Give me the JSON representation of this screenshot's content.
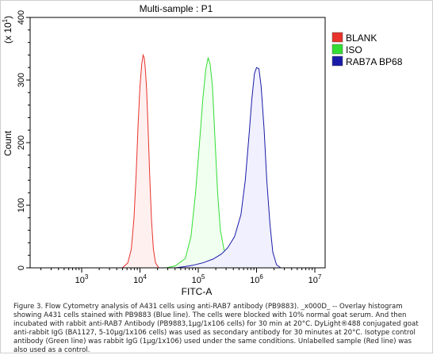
{
  "chart_data": {
    "type": "area",
    "title": "Multi-sample : P1",
    "xlabel": "FITC-A",
    "ylabel": "Count",
    "y_multiplier_label": "(x 10",
    "y_multiplier_exp": "1",
    "y_multiplier_close": ")",
    "x_scale": "log",
    "x_ticks": [
      {
        "base": "10",
        "exp": "3",
        "value": 1000
      },
      {
        "base": "10",
        "exp": "4",
        "value": 10000
      },
      {
        "base": "10",
        "exp": "5",
        "value": 100000
      },
      {
        "base": "10",
        "exp": "6",
        "value": 1000000
      },
      {
        "base": "10",
        "exp": "7",
        "value": 10000000
      }
    ],
    "xlim": [
      200,
      10000000
    ],
    "y_ticks": [
      "0",
      "100",
      "200",
      "300",
      "400"
    ],
    "ylim": [
      0,
      400
    ],
    "grid": false,
    "legend_position": "top-right",
    "series": [
      {
        "name": "BLANK",
        "color": "#e8322a",
        "fill": "#fff0f0",
        "points": [
          [
            5000,
            0
          ],
          [
            6200,
            8
          ],
          [
            7100,
            30
          ],
          [
            7900,
            80
          ],
          [
            8600,
            150
          ],
          [
            9300,
            230
          ],
          [
            10000,
            290
          ],
          [
            10700,
            325
          ],
          [
            11300,
            340
          ],
          [
            11800,
            336
          ],
          [
            12300,
            320
          ],
          [
            13000,
            285
          ],
          [
            13800,
            220
          ],
          [
            14800,
            140
          ],
          [
            15800,
            75
          ],
          [
            17000,
            30
          ],
          [
            18500,
            8
          ],
          [
            21000,
            0
          ]
        ]
      },
      {
        "name": "ISO",
        "color": "#33dd33",
        "fill": "#f0fff0",
        "points": [
          [
            28000,
            0
          ],
          [
            40000,
            3
          ],
          [
            60000,
            15
          ],
          [
            75000,
            50
          ],
          [
            90000,
            120
          ],
          [
            105000,
            200
          ],
          [
            120000,
            270
          ],
          [
            135000,
            318
          ],
          [
            148000,
            336
          ],
          [
            160000,
            325
          ],
          [
            175000,
            290
          ],
          [
            195000,
            200
          ],
          [
            215000,
            120
          ],
          [
            240000,
            60
          ],
          [
            275000,
            30
          ],
          [
            320000,
            12
          ],
          [
            380000,
            0
          ]
        ]
      },
      {
        "name": "RAB7A BP68",
        "color": "#1a1aa8",
        "fill": "#f0f0ff",
        "points": [
          [
            40000,
            0
          ],
          [
            60000,
            2
          ],
          [
            80000,
            4
          ],
          [
            120000,
            8
          ],
          [
            180000,
            14
          ],
          [
            250000,
            22
          ],
          [
            320000,
            32
          ],
          [
            420000,
            50
          ],
          [
            540000,
            85
          ],
          [
            640000,
            140
          ],
          [
            740000,
            210
          ],
          [
            830000,
            270
          ],
          [
            920000,
            310
          ],
          [
            1000000,
            320
          ],
          [
            1100000,
            318
          ],
          [
            1200000,
            290
          ],
          [
            1350000,
            220
          ],
          [
            1500000,
            140
          ],
          [
            1700000,
            70
          ],
          [
            1900000,
            25
          ],
          [
            2200000,
            5
          ],
          [
            2600000,
            0
          ]
        ]
      }
    ]
  },
  "caption": "Figure 3. Flow Cytometry analysis of A431 cells using anti-RAB7 antibody (PB9883). _x000D_ -- Overlay histogram showing A431 cells stained with PB9883 (Blue line). The cells were blocked with 10% normal goat serum. And then incubated with rabbit anti-RAB7 Antibody (PB9883,1µg/1x106 cells) for 30 min at 20°C. DyLight®488 conjugated goat anti-rabbit IgG (BA1127, 5-10µg/1x106 cells) was used as secondary antibody for 30 minutes at 20°C. Isotype control antibody (Green line) was rabbit IgG (1µg/1x106) used under the same conditions. Unlabelled sample (Red line) was also used as a control."
}
